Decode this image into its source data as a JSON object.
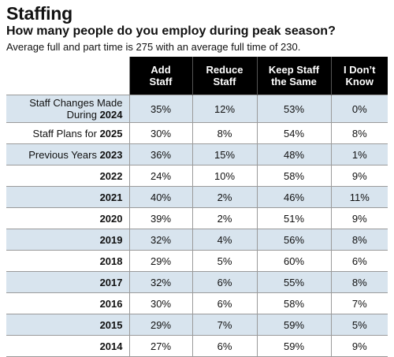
{
  "header": {
    "title": "Staffing",
    "subtitle": "How many people do you employ during peak season?",
    "note": "Average full and part time is 275 with an average full time of 230."
  },
  "table": {
    "columns": [
      {
        "line1": "Add",
        "line2": "Staff"
      },
      {
        "line1": "Reduce",
        "line2": "Staff"
      },
      {
        "line1": "Keep Staff",
        "line2": "the Same"
      },
      {
        "line1": "I Don’t",
        "line2": "Know"
      }
    ],
    "rows": [
      {
        "label_line1": "Staff Changes Made",
        "label_prefix": "During ",
        "label_bold": "2024",
        "values": [
          "35%",
          "12%",
          "53%",
          "0%"
        ]
      },
      {
        "label_prefix": "Staff Plans for ",
        "label_bold": "2025",
        "values": [
          "30%",
          "8%",
          "54%",
          "8%"
        ]
      },
      {
        "label_prefix": "Previous Years ",
        "label_bold": "2023",
        "values": [
          "36%",
          "15%",
          "48%",
          "1%"
        ]
      },
      {
        "label_bold": "2022",
        "values": [
          "24%",
          "10%",
          "58%",
          "9%"
        ]
      },
      {
        "label_bold": "2021",
        "values": [
          "40%",
          "2%",
          "46%",
          "11%"
        ]
      },
      {
        "label_bold": "2020",
        "values": [
          "39%",
          "2%",
          "51%",
          "9%"
        ]
      },
      {
        "label_bold": "2019",
        "values": [
          "32%",
          "4%",
          "56%",
          "8%"
        ]
      },
      {
        "label_bold": "2018",
        "values": [
          "29%",
          "5%",
          "60%",
          "6%"
        ]
      },
      {
        "label_bold": "2017",
        "values": [
          "32%",
          "6%",
          "55%",
          "8%"
        ]
      },
      {
        "label_bold": "2016",
        "values": [
          "30%",
          "6%",
          "58%",
          "7%"
        ]
      },
      {
        "label_bold": "2015",
        "values": [
          "29%",
          "7%",
          "59%",
          "5%"
        ]
      },
      {
        "label_bold": "2014",
        "values": [
          "27%",
          "6%",
          "59%",
          "9%"
        ]
      }
    ]
  },
  "colors": {
    "header_bg": "#000000",
    "shade": "#d8e4ee"
  }
}
